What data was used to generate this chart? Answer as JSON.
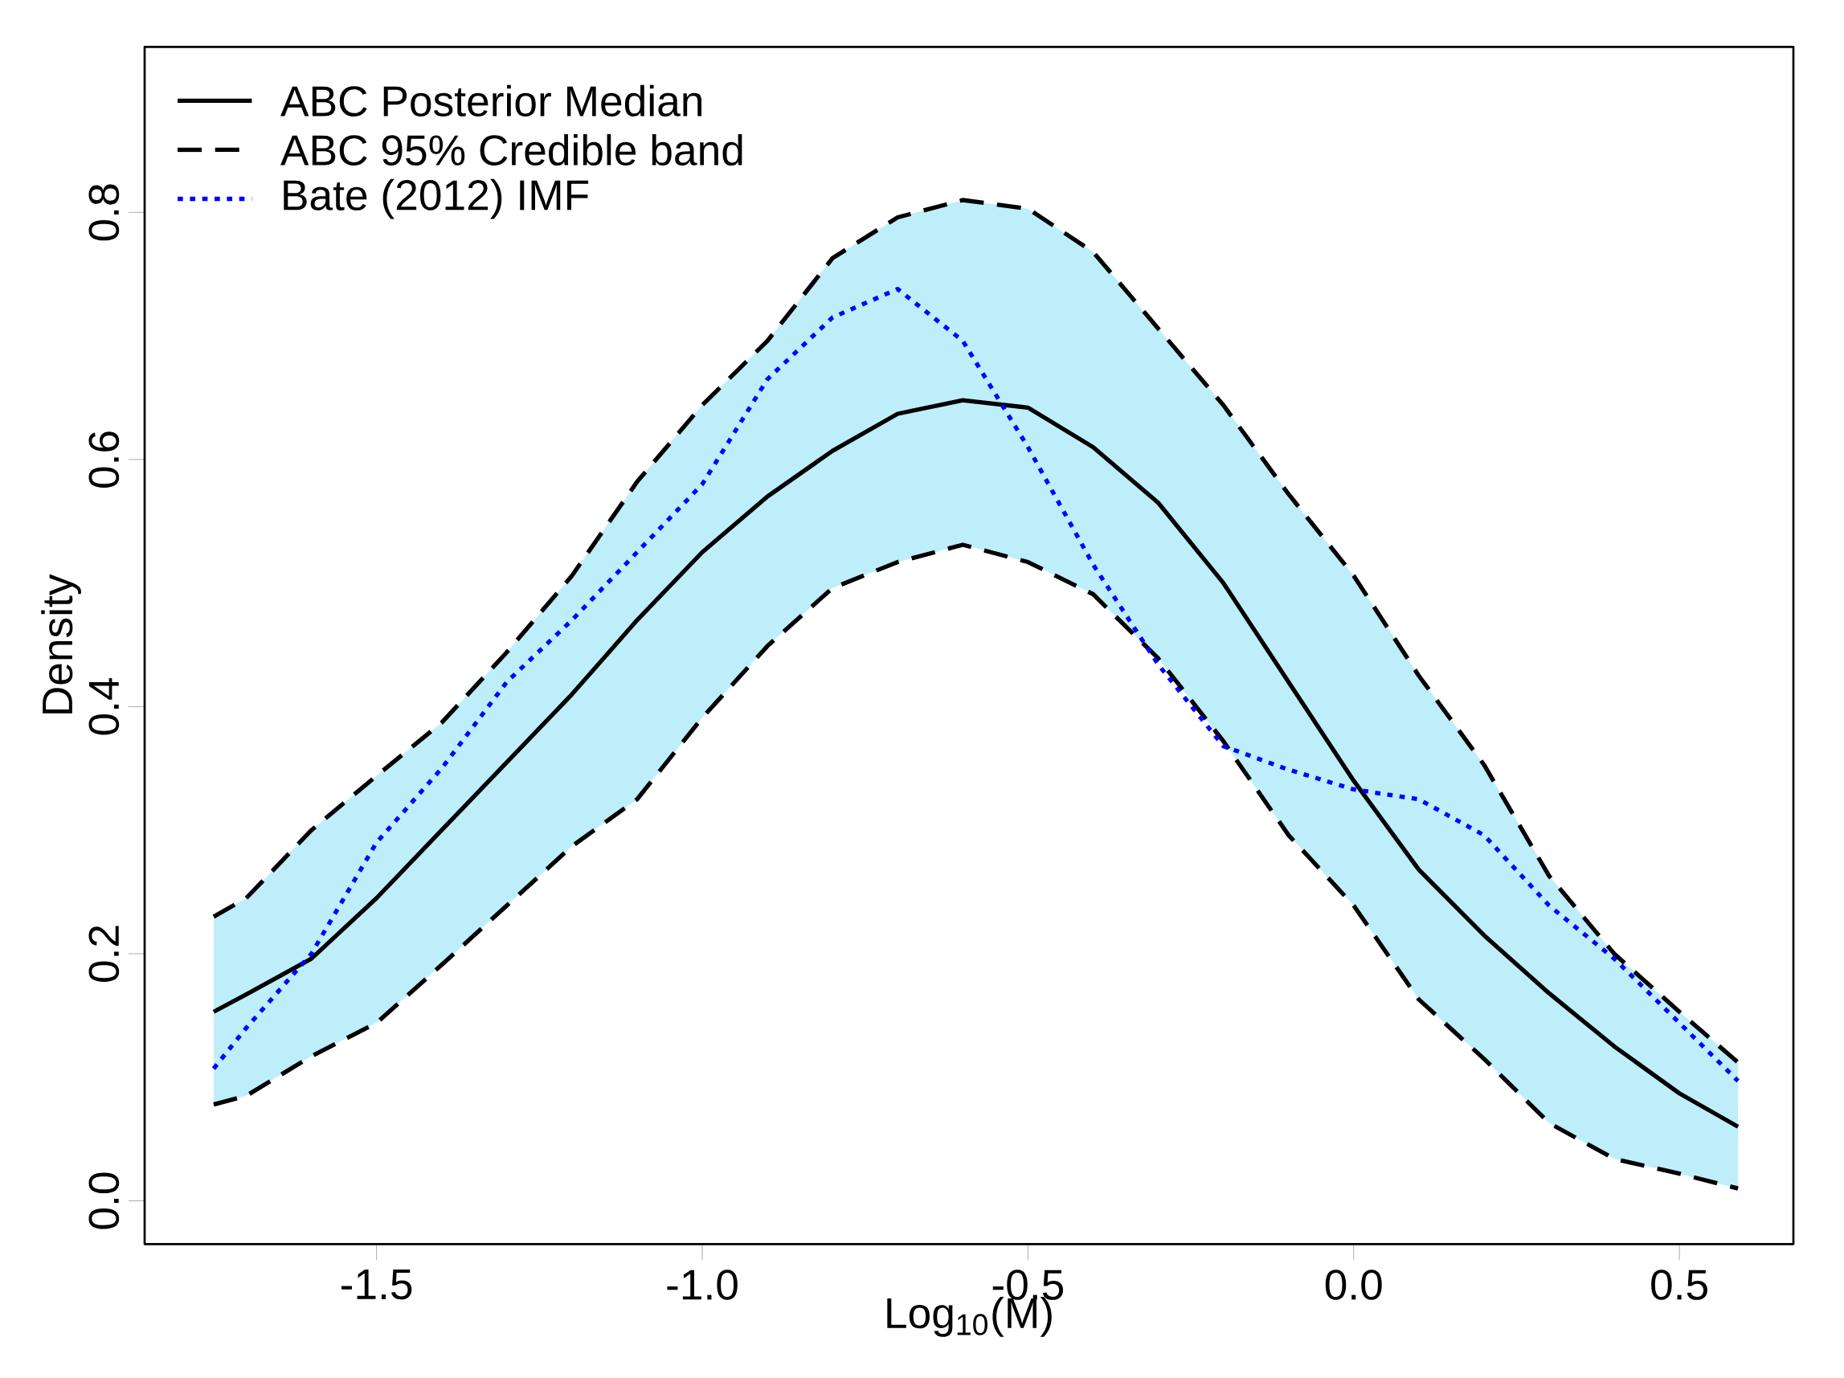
{
  "chart_data": {
    "type": "line",
    "xlabel": "Log$_{10}$(M)",
    "ylabel": "Density",
    "x": [
      -1.75,
      -1.7,
      -1.6,
      -1.5,
      -1.4,
      -1.3,
      -1.2,
      -1.1,
      -1.0,
      -0.9,
      -0.8,
      -0.7,
      -0.6,
      -0.5,
      -0.4,
      -0.3,
      -0.2,
      -0.1,
      0.0,
      0.1,
      0.2,
      0.3,
      0.4,
      0.5,
      0.59
    ],
    "series": [
      {
        "name": "ABC Posterior Median",
        "color": "#000000",
        "line_style": "solid",
        "values": [
          0.153,
          0.167,
          0.196,
          0.245,
          0.3,
          0.355,
          0.41,
          0.47,
          0.525,
          0.57,
          0.607,
          0.637,
          0.648,
          0.642,
          0.61,
          0.565,
          0.5,
          0.42,
          0.34,
          0.268,
          0.215,
          0.168,
          0.125,
          0.087,
          0.06
        ],
        "upper": [
          0.23,
          0.245,
          0.3,
          0.344,
          0.387,
          0.444,
          0.506,
          0.582,
          0.644,
          0.696,
          0.763,
          0.796,
          0.81,
          0.803,
          0.768,
          0.706,
          0.644,
          0.572,
          0.506,
          0.425,
          0.353,
          0.263,
          0.2,
          0.153,
          0.112
        ],
        "lower": [
          0.078,
          0.085,
          0.117,
          0.144,
          0.191,
          0.239,
          0.287,
          0.325,
          0.391,
          0.449,
          0.496,
          0.517,
          0.531,
          0.517,
          0.491,
          0.439,
          0.372,
          0.296,
          0.239,
          0.163,
          0.115,
          0.063,
          0.034,
          0.022,
          0.01
        ]
      },
      {
        "name": "ABC 95% Credible band",
        "color": "#000000",
        "line_style": "dashed",
        "values": [
          0.23,
          0.245,
          0.3,
          0.344,
          0.387,
          0.444,
          0.506,
          0.582,
          0.644,
          0.696,
          0.763,
          0.796,
          0.81,
          0.803,
          0.768,
          0.706,
          0.644,
          0.572,
          0.506,
          0.425,
          0.353,
          0.263,
          0.2,
          0.153,
          0.112
        ]
      },
      {
        "color": "#000000",
        "line_style": "dashed",
        "values": [
          0.078,
          0.085,
          0.117,
          0.144,
          0.191,
          0.239,
          0.287,
          0.325,
          0.391,
          0.449,
          0.496,
          0.517,
          0.531,
          0.517,
          0.491,
          0.439,
          0.372,
          0.296,
          0.239,
          0.163,
          0.115,
          0.063,
          0.034,
          0.022,
          0.01
        ]
      },
      {
        "name": "Bate (2012) IMF",
        "color": "#0000ff",
        "line_style": "dotted",
        "values": [
          0.107,
          0.14,
          0.2,
          0.29,
          0.35,
          0.42,
          0.47,
          0.525,
          0.58,
          0.665,
          0.715,
          0.738,
          0.696,
          0.61,
          0.515,
          0.434,
          0.368,
          0.349,
          0.333,
          0.325,
          0.296,
          0.239,
          0.196,
          0.144,
          0.097
        ]
      }
    ],
    "xlim": [
      -1.856,
      0.675
    ],
    "ylim": [
      -0.035,
      0.934
    ],
    "xticks": [
      -1.5,
      {
        "value": -1.0,
        "label": "-1.0"
      },
      -0.5,
      {
        "value": 0.0,
        "label": "0.0"
      },
      0.5
    ],
    "yticks": [
      {
        "value": 0.0,
        "label": "0.0"
      },
      0.2,
      0.4,
      0.6,
      0.8
    ],
    "legend": "top left",
    "grid": false
  }
}
